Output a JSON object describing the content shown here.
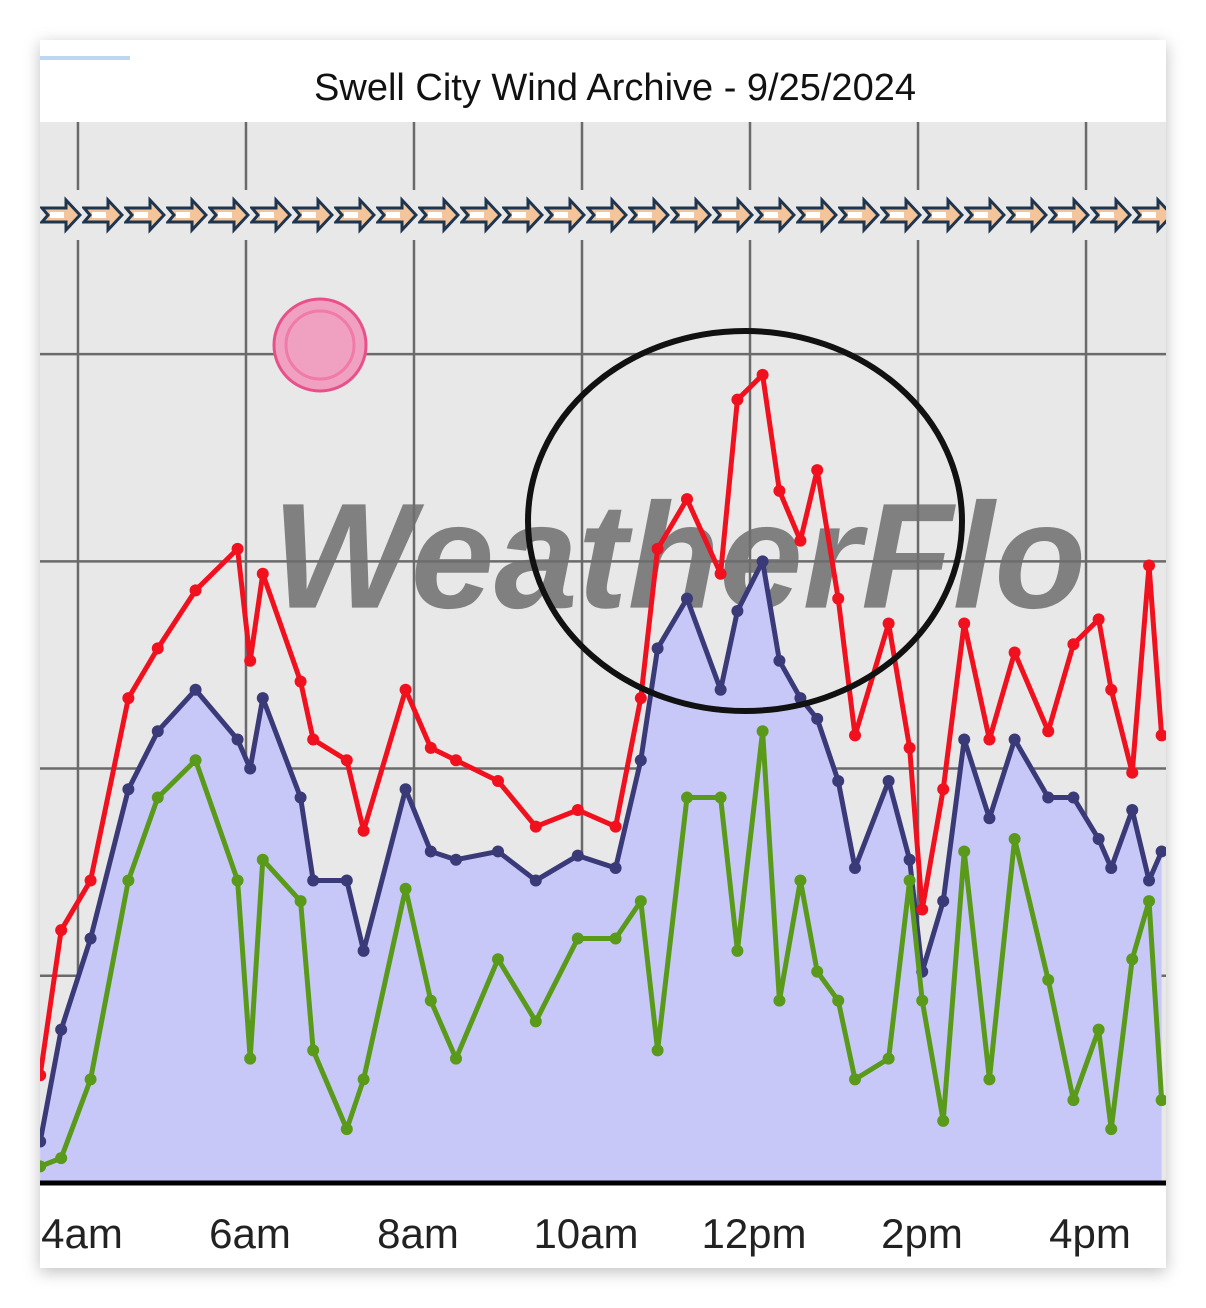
{
  "chart_data": {
    "type": "line",
    "title": "Swell City Wind Archive - 9/25/2024",
    "watermark": "WeatherFlo",
    "x": [
      3.55,
      3.8,
      4.15,
      4.6,
      4.95,
      5.4,
      5.9,
      6.05,
      6.2,
      6.65,
      6.8,
      7.2,
      7.4,
      7.9,
      8.2,
      8.5,
      9.0,
      9.45,
      9.95,
      10.4,
      10.7,
      10.9,
      11.25,
      11.65,
      11.85,
      12.15,
      12.35,
      12.6,
      12.8,
      13.05,
      13.25,
      13.65,
      13.9,
      14.05,
      14.3,
      14.55,
      14.85,
      15.15,
      15.55,
      15.85,
      16.15,
      16.3,
      16.55,
      16.75,
      16.9
    ],
    "series": [
      {
        "color": "#f0101e",
        "values": [
          2.6,
          6.1,
          7.3,
          11.7,
          12.9,
          14.3,
          15.3,
          12.6,
          14.7,
          12.1,
          10.7,
          10.2,
          8.5,
          11.9,
          10.5,
          10.2,
          9.7,
          8.6,
          9.0,
          8.6,
          11.7,
          15.3,
          16.5,
          14.7,
          18.9,
          19.5,
          16.7,
          15.5,
          17.2,
          14.1,
          10.8,
          13.5,
          10.5,
          6.6,
          9.5,
          13.5,
          10.7,
          12.8,
          10.9,
          13.0,
          13.6,
          11.9,
          9.9,
          14.9,
          10.8
        ]
      },
      {
        "color": "#3a3a78",
        "fill": "#c8c8f8",
        "values": [
          1.0,
          3.7,
          5.9,
          9.5,
          10.9,
          11.9,
          10.7,
          10.0,
          11.7,
          9.3,
          7.3,
          7.3,
          5.6,
          9.5,
          8.0,
          7.8,
          8.0,
          7.3,
          7.9,
          7.6,
          10.2,
          12.9,
          14.1,
          11.9,
          13.8,
          15.0,
          12.6,
          11.7,
          11.2,
          9.7,
          7.6,
          9.7,
          7.8,
          5.1,
          6.8,
          10.7,
          8.8,
          10.7,
          9.3,
          9.3,
          8.3,
          7.6,
          9.0,
          7.3,
          8.0
        ]
      },
      {
        "color": "#5a9a1a",
        "values": [
          0.4,
          0.6,
          2.5,
          7.3,
          9.3,
          10.2,
          7.3,
          3.0,
          7.8,
          6.8,
          3.2,
          1.3,
          2.5,
          7.1,
          4.4,
          3.0,
          5.4,
          3.9,
          5.9,
          5.9,
          6.8,
          3.2,
          9.3,
          9.3,
          5.6,
          10.9,
          4.4,
          7.3,
          5.1,
          4.4,
          2.5,
          3.0,
          7.3,
          4.4,
          1.5,
          8.0,
          2.5,
          8.3,
          4.9,
          2.0,
          3.7,
          1.3,
          5.4,
          6.8,
          2.0
        ]
      }
    ],
    "xlim": [
      3.548,
      16.952
    ],
    "xticks": [
      {
        "value": 4,
        "label": "4am"
      },
      {
        "value": 6,
        "label": "6am"
      },
      {
        "value": 8,
        "label": "8am"
      },
      {
        "value": 10,
        "label": "10am"
      },
      {
        "value": 12,
        "label": "12pm"
      },
      {
        "value": 14,
        "label": "2pm"
      },
      {
        "value": 16,
        "label": "4pm"
      }
    ],
    "ylim": [
      0,
      25.6
    ],
    "yticks": [
      5,
      10,
      15,
      20
    ],
    "grid": true
  }
}
